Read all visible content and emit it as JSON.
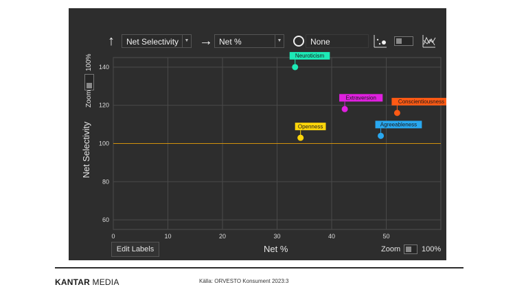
{
  "toolbar": {
    "y_axis_select": "Net Selectivity",
    "x_axis_select": "Net %",
    "size_select": "None"
  },
  "y_zoom": {
    "label": "Zoom",
    "value": "100%"
  },
  "x_zoom": {
    "label": "Zoom",
    "value": "100%"
  },
  "edit_labels_button": "Edit Labels",
  "footer": {
    "brand_bold": "KANTAR",
    "brand_rest": " MEDIA",
    "source": "Källa: ORVESTO Konsument 2023:3"
  },
  "chart_data": {
    "type": "scatter",
    "xlabel": "Net %",
    "ylabel": "Net Selectivity",
    "xlim": [
      0,
      60
    ],
    "ylim": [
      55,
      145
    ],
    "x_ticks": [
      0,
      10,
      20,
      30,
      40,
      50
    ],
    "y_ticks": [
      60,
      80,
      100,
      120,
      140
    ],
    "reference_line": {
      "y": 100,
      "color": "#d4930d"
    },
    "grid": true,
    "points": [
      {
        "name": "Neuroticism",
        "x": 33.3,
        "y": 140,
        "color": "#1de9b6"
      },
      {
        "name": "Extraversion",
        "x": 42.4,
        "y": 118,
        "color": "#e020e0"
      },
      {
        "name": "Conscientiousness",
        "x": 52,
        "y": 116,
        "color": "#ff5a14"
      },
      {
        "name": "Openness",
        "x": 34.3,
        "y": 103,
        "color": "#ffd60a"
      },
      {
        "name": "Agreeableness",
        "x": 49,
        "y": 104,
        "color": "#29a8f0"
      }
    ]
  }
}
